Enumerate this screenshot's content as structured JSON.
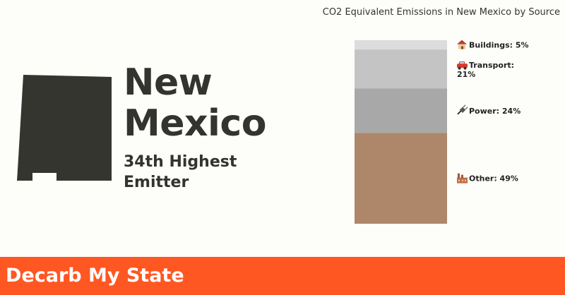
{
  "state": {
    "name_line1": "New",
    "name_line2": "Mexico",
    "rank_line1": "34th Highest",
    "rank_line2": "Emitter"
  },
  "footer": {
    "brand": "Decarb My State",
    "color": "#ff5722"
  },
  "chart_data": {
    "type": "bar",
    "stacked": true,
    "title": "CO2 Equivalent Emissions in New Mexico by Source",
    "unit": "%",
    "segments": [
      {
        "icon": "house-icon",
        "label_line1": "Buildings: 5%",
        "label_line2": "",
        "value": 5,
        "color": "#dcdcdc"
      },
      {
        "icon": "car-icon",
        "label_line1": "Transport:",
        "label_line2": "21%",
        "value": 21,
        "color": "#c4c4c4"
      },
      {
        "icon": "plug-icon",
        "label_line1": "Power: 24%",
        "label_line2": "",
        "value": 24,
        "color": "#a8a8a8"
      },
      {
        "icon": "factory-icon",
        "label_line1": "Other: 49%",
        "label_line2": "",
        "value": 49,
        "color": "#ae8669"
      }
    ]
  }
}
